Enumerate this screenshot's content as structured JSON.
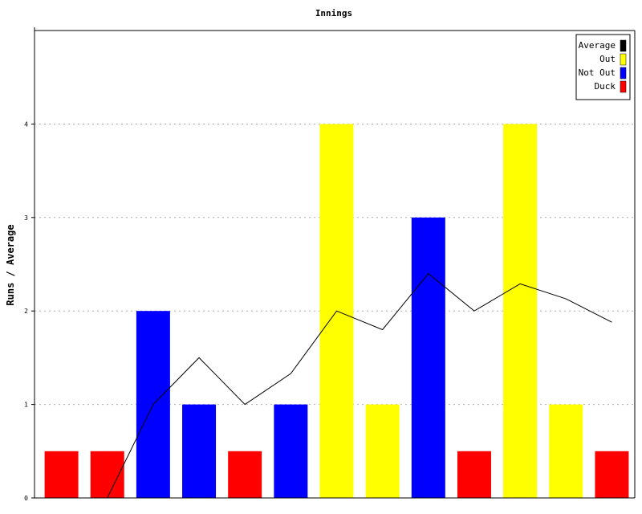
{
  "chart_data": {
    "type": "bar",
    "title": "Innings",
    "ylabel": "Runs / Average",
    "xlabel": "",
    "ylim": [
      0,
      5
    ],
    "yticks": [
      0,
      1,
      2,
      3,
      4
    ],
    "grid": true,
    "legend_position": "top-right",
    "legend": [
      {
        "name": "Average",
        "color": "#000000"
      },
      {
        "name": "Out",
        "color": "#ffff00"
      },
      {
        "name": "Not Out",
        "color": "#0000ff"
      },
      {
        "name": "Duck",
        "color": "#ff0000"
      }
    ],
    "bars": [
      {
        "value": 0.5,
        "category": "Duck"
      },
      {
        "value": 0.5,
        "category": "Duck"
      },
      {
        "value": 2,
        "category": "Not Out"
      },
      {
        "value": 1,
        "category": "Not Out"
      },
      {
        "value": 0.5,
        "category": "Duck"
      },
      {
        "value": 1,
        "category": "Not Out"
      },
      {
        "value": 4,
        "category": "Out"
      },
      {
        "value": 1,
        "category": "Out"
      },
      {
        "value": 3,
        "category": "Not Out"
      },
      {
        "value": 0.5,
        "category": "Duck"
      },
      {
        "value": 4,
        "category": "Out"
      },
      {
        "value": 1,
        "category": "Out"
      },
      {
        "value": 0.5,
        "category": "Duck"
      }
    ],
    "average_line": {
      "name": "Average",
      "values": [
        null,
        0,
        1,
        1.5,
        1,
        1.33,
        2,
        1.8,
        2.4,
        2,
        2.29,
        2.13,
        1.88
      ]
    }
  }
}
